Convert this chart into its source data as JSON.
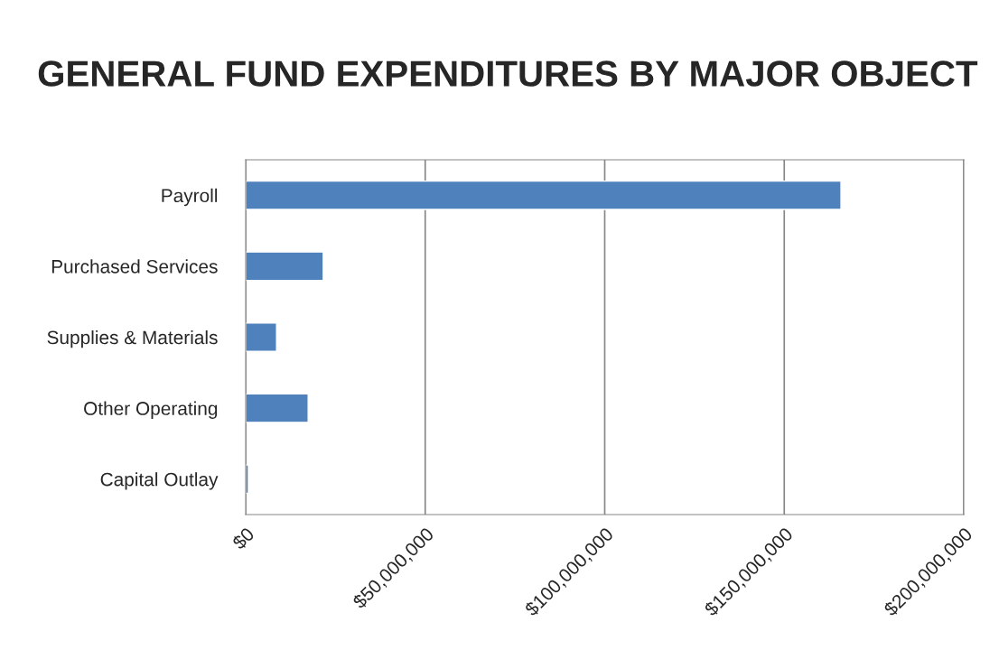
{
  "chart_data": {
    "type": "bar",
    "orientation": "horizontal",
    "title": "GENERAL FUND EXPENDITURES BY MAJOR OBJECT",
    "categories": [
      "Payroll",
      "Purchased Services",
      "Supplies & Materials",
      "Other Operating",
      "Capital Outlay"
    ],
    "values": [
      165800000,
      21600000,
      8600000,
      17400000,
      750000
    ],
    "color": "#4f81bd",
    "xlim": [
      0,
      200000000
    ],
    "xticks": [
      {
        "value": 0,
        "label": "$0"
      },
      {
        "value": 50000000,
        "label": "$50,000,000"
      },
      {
        "value": 100000000,
        "label": "$100,000,000"
      },
      {
        "value": 150000000,
        "label": "$150,000,000"
      },
      {
        "value": 200000000,
        "label": "$200,000,000"
      }
    ],
    "grid": "x",
    "legend": false
  }
}
